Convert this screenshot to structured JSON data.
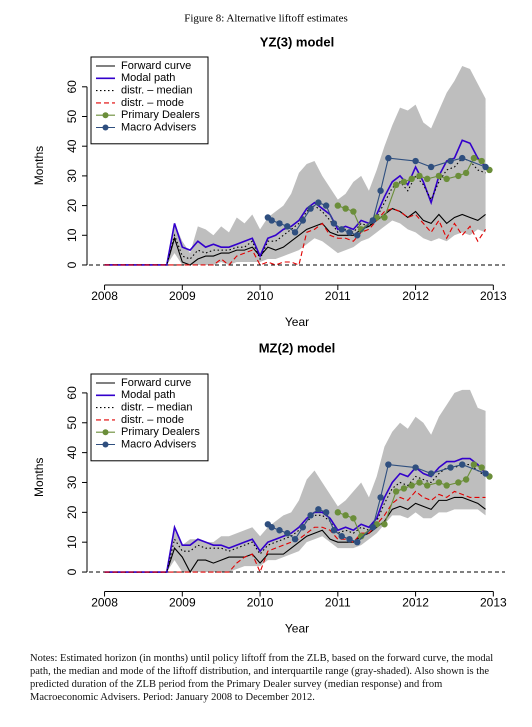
{
  "figure_title": "Figure 8: Alternative liftoff estimates",
  "chart_data": [
    {
      "type": "line",
      "title": "YZ(3) model",
      "x_label": "Year",
      "y_label": "Months",
      "xlim": [
        2007.8,
        2013.15
      ],
      "xticks": [
        2008,
        2009,
        2010,
        2011,
        2012,
        2013
      ],
      "ylim": [
        -2.7,
        69.7
      ],
      "yticks": [
        0,
        10,
        20,
        30,
        40,
        50,
        60
      ],
      "legend": "upper left",
      "reference_line": 0,
      "x": [
        2008,
        2008.8,
        2008.9,
        2009,
        2009.1,
        2009.2,
        2009.3,
        2009.4,
        2009.5,
        2009.6,
        2009.7,
        2009.8,
        2009.9,
        2010,
        2010.1,
        2010.2,
        2010.3,
        2010.4,
        2010.5,
        2010.6,
        2010.7,
        2010.8,
        2010.9,
        2011,
        2011.1,
        2011.2,
        2011.3,
        2011.4,
        2011.5,
        2011.6,
        2011.7,
        2011.8,
        2011.9,
        2012,
        2012.1,
        2012.2,
        2012.3,
        2012.4,
        2012.5,
        2012.6,
        2012.7,
        2012.8,
        2012.9
      ],
      "band": {
        "color": "#bebebe",
        "upper": [
          0,
          0,
          14,
          8,
          4,
          13,
          12,
          10,
          13,
          11,
          16,
          14,
          17,
          12,
          16,
          18,
          20,
          24,
          31,
          34,
          35,
          30,
          26,
          22,
          24,
          28,
          30,
          25,
          32,
          40,
          47,
          53,
          52,
          54,
          48,
          46,
          52,
          58,
          62,
          67,
          66,
          61,
          56
        ],
        "lower": [
          0,
          0,
          4,
          0,
          0,
          0,
          0,
          0,
          1,
          0,
          1,
          1,
          1,
          1,
          2,
          2,
          3,
          4,
          5,
          7,
          9,
          8,
          6,
          4,
          5,
          6,
          8,
          9,
          11,
          13,
          15,
          14,
          12,
          11,
          9,
          8,
          9,
          8,
          10,
          11,
          10,
          12,
          11
        ]
      },
      "series": [
        {
          "name": "Forward curve",
          "color": "#000000",
          "style": "solid",
          "values": [
            0,
            0,
            9,
            1,
            0,
            2,
            3,
            3,
            4,
            4,
            5,
            5,
            6,
            3,
            6,
            5,
            6,
            8,
            10,
            12,
            13,
            14,
            11,
            10,
            10,
            10,
            12,
            13,
            15,
            17,
            19,
            18,
            16,
            18,
            15,
            14,
            17,
            14,
            16,
            17,
            16,
            15,
            17
          ]
        },
        {
          "name": "Modal path",
          "color": "#3300cc",
          "style": "solid",
          "values": [
            0,
            0,
            14,
            6,
            5,
            8,
            6,
            7,
            6,
            6,
            7,
            8,
            9,
            3,
            9,
            10,
            12,
            13,
            15,
            19,
            21,
            19,
            17,
            12,
            13,
            12,
            15,
            14,
            17,
            23,
            28,
            30,
            27,
            33,
            28,
            21,
            30,
            35,
            36,
            42,
            41,
            36,
            33
          ]
        },
        {
          "name": "distr. – median",
          "color": "#000000",
          "style": "dotted",
          "values": [
            0,
            0,
            10,
            3,
            2,
            5,
            4,
            5,
            5,
            5,
            6,
            6,
            8,
            2,
            8,
            8,
            10,
            12,
            14,
            18,
            20,
            18,
            15,
            11,
            12,
            11,
            14,
            13,
            16,
            21,
            26,
            28,
            25,
            30,
            27,
            22,
            28,
            32,
            33,
            36,
            35,
            32,
            31
          ]
        },
        {
          "name": "distr. – mode",
          "color": "#e00000",
          "style": "dashed",
          "values": [
            0,
            0,
            0,
            0,
            0,
            0,
            0,
            0,
            2,
            0,
            3,
            4,
            5,
            0,
            1,
            0,
            1,
            1,
            0,
            11,
            12,
            14,
            10,
            9,
            9,
            8,
            11,
            12,
            15,
            18,
            19,
            18,
            16,
            17,
            14,
            11,
            15,
            9,
            14,
            10,
            13,
            8,
            12
          ]
        },
        {
          "name": "Primary Dealers",
          "color": "#6b8e3a",
          "style": "solid",
          "marker": true,
          "x": [
            2011,
            2011.1,
            2011.2,
            2011.3,
            2011.5,
            2011.6,
            2011.75,
            2011.85,
            2011.95,
            2012.05,
            2012.15,
            2012.3,
            2012.4,
            2012.55,
            2012.65,
            2012.75,
            2012.85,
            2012.95
          ],
          "values": [
            20,
            19,
            18,
            12,
            16,
            16,
            27,
            28,
            29,
            30,
            29,
            30,
            29,
            30,
            31,
            36,
            35,
            32
          ]
        },
        {
          "name": "Macro Advisers",
          "color": "#2f4f7f",
          "style": "solid",
          "marker": true,
          "x": [
            2010.1,
            2010.15,
            2010.25,
            2010.35,
            2010.45,
            2010.55,
            2010.65,
            2010.75,
            2010.85,
            2010.95,
            2011.05,
            2011.15,
            2011.25,
            2011.45,
            2011.55,
            2011.65,
            2012,
            2012.2,
            2012.45,
            2012.6,
            2012.9
          ],
          "values": [
            16,
            15,
            14,
            13,
            11,
            15,
            19,
            21,
            20,
            14,
            12,
            11,
            10,
            15,
            25,
            36,
            35,
            33,
            35,
            36,
            33
          ]
        }
      ]
    },
    {
      "type": "line",
      "title": "MZ(2) model",
      "x_label": "Year",
      "y_label": "Months",
      "xlim": [
        2007.8,
        2013.15
      ],
      "xticks": [
        2008,
        2009,
        2010,
        2011,
        2012,
        2013
      ],
      "ylim": [
        -2.5,
        66
      ],
      "yticks": [
        0,
        10,
        20,
        30,
        40,
        50,
        60
      ],
      "legend": "upper left",
      "reference_line": 0,
      "x": [
        2008,
        2008.8,
        2008.9,
        2009,
        2009.1,
        2009.2,
        2009.3,
        2009.4,
        2009.5,
        2009.6,
        2009.7,
        2009.8,
        2009.9,
        2010,
        2010.1,
        2010.2,
        2010.3,
        2010.4,
        2010.5,
        2010.6,
        2010.7,
        2010.8,
        2010.9,
        2011,
        2011.1,
        2011.2,
        2011.3,
        2011.4,
        2011.5,
        2011.6,
        2011.7,
        2011.8,
        2011.9,
        2012,
        2012.1,
        2012.2,
        2012.3,
        2012.4,
        2012.5,
        2012.6,
        2012.7,
        2012.8,
        2012.9
      ],
      "band": {
        "color": "#bebebe",
        "upper": [
          0,
          0,
          14,
          9,
          11,
          11,
          10,
          10,
          12,
          12,
          13,
          14,
          15,
          12,
          15,
          17,
          19,
          20,
          24,
          31,
          34,
          30,
          26,
          22,
          24,
          27,
          30,
          25,
          32,
          42,
          47,
          50,
          48,
          52,
          50,
          46,
          52,
          56,
          60,
          61,
          61,
          55,
          54
        ],
        "lower": [
          0,
          0,
          4,
          0,
          0,
          0,
          0,
          0,
          0,
          0,
          1,
          2,
          2,
          2,
          4,
          4,
          5,
          6,
          7,
          10,
          11,
          12,
          10,
          8,
          8,
          8,
          9,
          11,
          13,
          16,
          19,
          19,
          18,
          20,
          18,
          18,
          20,
          20,
          21,
          21,
          21,
          21,
          19
        ]
      },
      "series": [
        {
          "name": "Forward curve",
          "color": "#000000",
          "style": "solid",
          "values": [
            0,
            0,
            8,
            5,
            0,
            4,
            4,
            3,
            4,
            5,
            5,
            5,
            6,
            3,
            6,
            6,
            6,
            8,
            10,
            12,
            13,
            14,
            11,
            10,
            10,
            10,
            12,
            13,
            15,
            17,
            21,
            22,
            21,
            23,
            22,
            21,
            24,
            24,
            25,
            25,
            24,
            23,
            21
          ]
        },
        {
          "name": "Modal path",
          "color": "#3300cc",
          "style": "solid",
          "values": [
            0,
            0,
            15,
            9,
            9,
            11,
            10,
            9,
            9,
            8,
            9,
            10,
            11,
            7,
            10,
            11,
            12,
            13,
            15,
            18,
            20,
            20,
            18,
            14,
            15,
            14,
            16,
            15,
            18,
            25,
            30,
            33,
            32,
            35,
            33,
            32,
            35,
            37,
            37,
            38,
            38,
            36,
            33
          ]
        },
        {
          "name": "distr. – median",
          "color": "#000000",
          "style": "dotted",
          "values": [
            0,
            0,
            11,
            7,
            7,
            9,
            8,
            8,
            8,
            7,
            8,
            9,
            10,
            6,
            9,
            10,
            11,
            12,
            14,
            17,
            19,
            19,
            17,
            13,
            14,
            13,
            15,
            14,
            17,
            23,
            28,
            30,
            29,
            32,
            31,
            30,
            33,
            35,
            35,
            36,
            36,
            34,
            32
          ]
        },
        {
          "name": "distr. – mode",
          "color": "#e00000",
          "style": "dashed",
          "values": [
            0,
            0,
            0,
            0,
            0,
            0,
            0,
            0,
            0,
            0,
            3,
            5,
            6,
            0,
            7,
            8,
            9,
            10,
            11,
            13,
            15,
            15,
            14,
            11,
            11,
            10,
            13,
            13,
            16,
            19,
            23,
            25,
            24,
            27,
            25,
            24,
            26,
            25,
            27,
            26,
            25,
            25,
            25
          ]
        },
        {
          "name": "Primary Dealers",
          "color": "#6b8e3a",
          "style": "solid",
          "marker": true,
          "x": [
            2011,
            2011.1,
            2011.2,
            2011.3,
            2011.5,
            2011.6,
            2011.75,
            2011.85,
            2011.95,
            2012.05,
            2012.15,
            2012.3,
            2012.4,
            2012.55,
            2012.65,
            2012.75,
            2012.85,
            2012.95
          ],
          "values": [
            20,
            19,
            18,
            12,
            16,
            16,
            27,
            28,
            29,
            30,
            29,
            30,
            29,
            30,
            31,
            36,
            35,
            32
          ]
        },
        {
          "name": "Macro Advisers",
          "color": "#2f4f7f",
          "style": "solid",
          "marker": true,
          "x": [
            2010.1,
            2010.15,
            2010.25,
            2010.35,
            2010.45,
            2010.55,
            2010.65,
            2010.75,
            2010.85,
            2010.95,
            2011.05,
            2011.15,
            2011.25,
            2011.45,
            2011.55,
            2011.65,
            2012,
            2012.2,
            2012.45,
            2012.6,
            2012.9
          ],
          "values": [
            16,
            15,
            14,
            13,
            11,
            15,
            19,
            21,
            20,
            14,
            12,
            11,
            10,
            15,
            25,
            36,
            35,
            33,
            35,
            36,
            33
          ]
        }
      ]
    }
  ],
  "notes": "Notes: Estimated horizon (in months) until policy liftoff from the ZLB, based on the forward curve, the modal path, the median and mode of the liftoff distribution, and interquartile range (gray-shaded). Also shown is the predicted duration of the ZLB period from the Primary Dealer survey (median response) and from Macroeconomic Advisers. Period: January 2008 to December 2012."
}
